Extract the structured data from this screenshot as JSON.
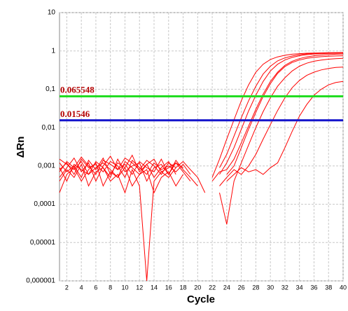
{
  "chart_data": {
    "type": "line",
    "xlabel": "Cycle",
    "ylabel": "ΔRn",
    "log_y": true,
    "grid": true,
    "x": [
      1,
      2,
      3,
      4,
      5,
      6,
      7,
      8,
      9,
      10,
      11,
      12,
      13,
      14,
      15,
      16,
      17,
      18,
      19,
      20,
      21,
      22,
      23,
      24,
      25,
      26,
      27,
      28,
      29,
      30,
      31,
      32,
      33,
      34,
      35,
      36,
      37,
      38,
      39,
      40
    ],
    "xlim": [
      1,
      40
    ],
    "xticks": [
      2,
      4,
      6,
      8,
      10,
      12,
      14,
      16,
      18,
      20,
      22,
      24,
      26,
      28,
      30,
      32,
      34,
      36,
      38,
      40
    ],
    "ylim": [
      1e-06,
      10
    ],
    "yticks": [
      {
        "value": 1e-06,
        "label": "0,000001"
      },
      {
        "value": 1e-05,
        "label": "0,00001"
      },
      {
        "value": 0.0001,
        "label": "0,0001"
      },
      {
        "value": 0.001,
        "label": "0,001"
      },
      {
        "value": 0.01,
        "label": "0,01"
      },
      {
        "value": 0.1,
        "label": "0,1"
      },
      1,
      10
    ],
    "thresholds": [
      {
        "value": 0.065548,
        "color": "#22dd22"
      },
      {
        "value": 0.01546,
        "color": "#1414cc"
      }
    ],
    "series": [
      {
        "color": "#ff0000",
        "values": [
          0.0008,
          0.0012,
          0.0006,
          0.0015,
          0.0009,
          0.0011,
          0.0007,
          0.0013,
          0.001,
          0.0005,
          0.0014,
          0.0009,
          0.0006,
          0.0012,
          0.0008,
          0.001,
          0.0007,
          0.0011,
          0.0006,
          null,
          null,
          null,
          0.0009,
          0.002,
          0.006,
          0.018,
          0.05,
          0.12,
          0.25,
          0.4,
          0.55,
          0.66,
          0.74,
          0.8,
          0.84,
          0.86,
          0.88,
          0.89,
          0.9,
          0.9
        ]
      },
      {
        "color": "#ff0000",
        "values": [
          0.0005,
          0.0009,
          0.0016,
          0.0007,
          0.0012,
          0.0004,
          0.001,
          0.0018,
          0.0008,
          0.0011,
          0.0006,
          0.0013,
          0.0009,
          0.0007,
          0.0015,
          0.0006,
          0.0012,
          0.0009,
          null,
          null,
          null,
          0.0004,
          0.0007,
          0.0008,
          0.0015,
          0.004,
          0.011,
          0.03,
          0.075,
          0.16,
          0.28,
          0.42,
          0.54,
          0.63,
          0.7,
          0.75,
          0.78,
          0.8,
          0.82,
          0.83
        ]
      },
      {
        "color": "#ff0000",
        "values": [
          0.0012,
          0.0007,
          0.001,
          0.0005,
          0.0014,
          0.0008,
          0.0016,
          0.0006,
          0.0012,
          0.0009,
          0.0019,
          0.0007,
          0.0011,
          0.0005,
          0.0009,
          0.0013,
          0.0006,
          null,
          null,
          null,
          null,
          null,
          0.0003,
          0.0005,
          0.0008,
          0.0006,
          0.001,
          0.002,
          0.005,
          0.012,
          0.028,
          0.06,
          0.11,
          0.17,
          0.23,
          0.28,
          0.32,
          0.35,
          0.37,
          0.38
        ]
      },
      {
        "color": "#ff0000",
        "values": [
          0.0009,
          0.0004,
          0.0011,
          0.0008,
          0.0006,
          0.0013,
          0.0009,
          0.0005,
          0.0015,
          0.0007,
          0.001,
          0.0012,
          0.0004,
          0.0009,
          0.0011,
          0.0006,
          0.0014,
          0.0008,
          0.0005,
          0.0003,
          null,
          null,
          null,
          0.0004,
          0.0006,
          0.0009,
          0.0007,
          0.0008,
          0.0006,
          0.0009,
          0.0012,
          0.003,
          0.008,
          0.02,
          0.04,
          0.07,
          0.1,
          0.13,
          0.15,
          0.16
        ]
      },
      {
        "color": "#ff0000",
        "values": [
          0.0015,
          0.0011,
          0.0008,
          0.0013,
          0.0006,
          0.0009,
          0.0012,
          0.0008,
          0.0005,
          0.0013,
          0.0009,
          0.0006,
          0.0011,
          0.0015,
          0.0007,
          0.0009,
          0.0012,
          0.0007,
          0.0004,
          null,
          null,
          0.0005,
          0.0015,
          0.005,
          0.016,
          0.05,
          0.13,
          0.28,
          0.45,
          0.6,
          0.7,
          0.77,
          0.82,
          0.85,
          0.87,
          0.88,
          0.89,
          0.9,
          0.9,
          0.91
        ]
      },
      {
        "color": "#ff0000",
        "values": [
          0.0004,
          0.0008,
          0.0005,
          0.0011,
          0.0003,
          0.0007,
          0.0009,
          0.0004,
          0.0006,
          0.0002,
          0.0008,
          0.0003,
          1e-06,
          0.0004,
          0.0007,
          0.0005,
          0.0009,
          null,
          null,
          null,
          null,
          null,
          null,
          0.0006,
          0.001,
          0.003,
          0.009,
          0.025,
          0.065,
          0.14,
          0.26,
          0.39,
          0.5,
          0.58,
          0.64,
          0.68,
          0.71,
          0.73,
          0.74,
          0.75
        ]
      },
      {
        "color": "#ff0000",
        "values": [
          0.0002,
          0.0006,
          0.0009,
          0.0004,
          0.0008,
          0.0012,
          0.0003,
          0.0007,
          0.0005,
          0.0009,
          0.0003,
          0.0006,
          0.0008,
          0.0002,
          0.0005,
          0.0007,
          0.0003,
          0.0006,
          null,
          null,
          null,
          null,
          0.0002,
          3e-05,
          0.0004,
          0.0012,
          0.0035,
          0.01,
          0.026,
          0.06,
          0.12,
          0.2,
          0.3,
          0.4,
          0.48,
          0.54,
          0.58,
          0.61,
          0.63,
          0.64
        ]
      },
      {
        "color": "#ff0000",
        "values": [
          0.0007,
          0.0013,
          0.0009,
          0.0017,
          0.001,
          0.0006,
          0.0014,
          0.0011,
          0.0008,
          0.0016,
          0.0012,
          0.0008,
          0.0014,
          0.001,
          0.0006,
          0.0012,
          0.0009,
          0.0013,
          0.0008,
          0.0005,
          0.0002,
          null,
          0.0006,
          0.0012,
          0.003,
          0.009,
          0.027,
          0.07,
          0.16,
          0.3,
          0.45,
          0.58,
          0.68,
          0.75,
          0.8,
          0.83,
          0.85,
          0.86,
          0.87,
          0.88
        ]
      }
    ]
  }
}
